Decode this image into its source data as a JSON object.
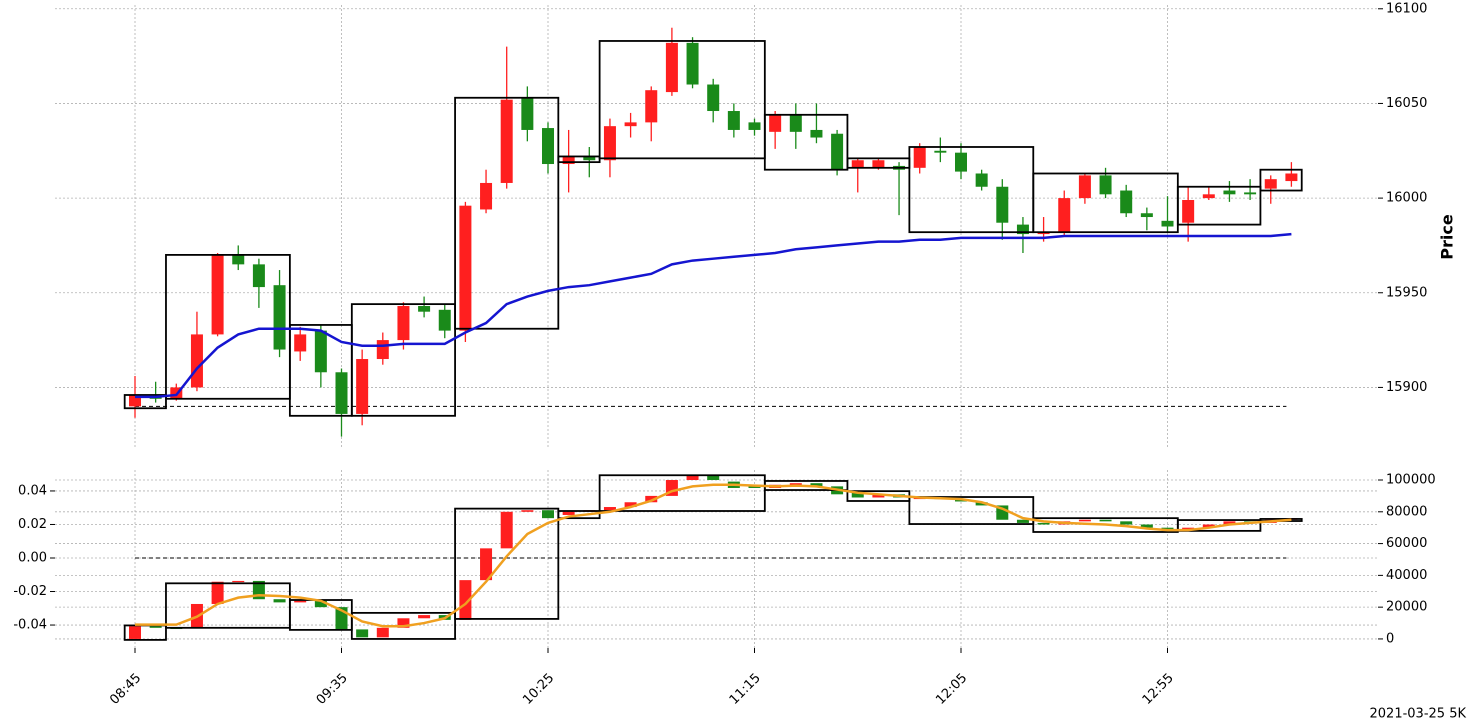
{
  "footer": "2021-03-25 5K",
  "chart_data": [
    {
      "type": "candlestick",
      "ylabel": "Price",
      "ylim": [
        15868,
        16102
      ],
      "yticks": [
        15900,
        15950,
        16000,
        16050,
        16100
      ],
      "grid": true,
      "up_color": "#ff1f1f",
      "down_color": "#1a8a1a",
      "box_color": "#000000",
      "hline": 15890,
      "open": [
        15890,
        15895,
        15894,
        15900,
        15928,
        15970,
        15965,
        15954,
        15919,
        15930,
        15908,
        15886,
        15915,
        15925,
        15943,
        15941,
        15930,
        15994,
        16008,
        16053,
        16037,
        16018,
        16022,
        16020,
        16038,
        16040,
        16056,
        16082,
        16060,
        16046,
        16040,
        16035,
        16044,
        16036,
        16034,
        16016,
        16016,
        16017,
        16016,
        16025,
        16024,
        16013,
        16006,
        15986,
        15981,
        15982,
        16000,
        16012,
        16004,
        15992,
        15988,
        15987,
        16000,
        16004,
        16003,
        16005,
        16009
      ],
      "high": [
        15906,
        15903,
        15902,
        15940,
        15971,
        15975,
        15968,
        15962,
        15932,
        15933,
        15910,
        15920,
        15929,
        15945,
        15948,
        15944,
        15998,
        16015,
        16080,
        16059,
        16040,
        16036,
        16027,
        16042,
        16045,
        16059,
        16090,
        16085,
        16063,
        16050,
        16042,
        16046,
        16050,
        16050,
        16036,
        16021,
        16021,
        16019,
        16029,
        16032,
        16029,
        16015,
        16010,
        15990,
        15990,
        16004,
        16013,
        16016,
        16007,
        15995,
        16001,
        16006,
        16006,
        16009,
        16010,
        16012,
        16019
      ],
      "low": [
        15884,
        15892,
        15893,
        15898,
        15927,
        15962,
        15942,
        15916,
        15914,
        15900,
        15874,
        15880,
        15912,
        15920,
        15937,
        15926,
        15924,
        15992,
        16005,
        16030,
        16013,
        16003,
        16011,
        16011,
        16032,
        16030,
        16054,
        16058,
        16040,
        16032,
        16033,
        16026,
        16026,
        16029,
        16012,
        16003,
        16015,
        15991,
        16013,
        16019,
        16010,
        16004,
        15978,
        15971,
        15977,
        15980,
        15997,
        16000,
        15990,
        15983,
        15982,
        15977,
        15999,
        15998,
        15999,
        15997,
        16006
      ],
      "close": [
        15896,
        15894,
        15900,
        15928,
        15970,
        15965,
        15953,
        15920,
        15928,
        15908,
        15886,
        15915,
        15925,
        15943,
        15940,
        15930,
        15996,
        16008,
        16052,
        16036,
        16018,
        16022,
        16020,
        16038,
        16040,
        16057,
        16082,
        16060,
        16046,
        16036,
        16036,
        16044,
        16035,
        16032,
        16015,
        16020,
        16020,
        16015,
        16027,
        16024,
        16014,
        16006,
        15987,
        15981,
        15982,
        16000,
        16012,
        16002,
        15992,
        15990,
        15985,
        15999,
        16002,
        16002,
        16002,
        16010,
        16013
      ],
      "boxes": [
        {
          "high": 15896,
          "low": 15889,
          "bars": 2
        },
        {
          "high": 15970,
          "low": 15894,
          "bars": 6
        },
        {
          "high": 15933,
          "low": 15885,
          "bars": 3
        },
        {
          "high": 15944,
          "low": 15885,
          "bars": 5
        },
        {
          "high": 16053,
          "low": 15931,
          "bars": 5
        },
        {
          "high": 16022,
          "low": 16019,
          "bars": 2
        },
        {
          "high": 16083,
          "low": 16021,
          "bars": 8
        },
        {
          "high": 16044,
          "low": 16015,
          "bars": 4
        },
        {
          "high": 16021,
          "low": 16016,
          "bars": 3
        },
        {
          "high": 16027,
          "low": 15982,
          "bars": 6
        },
        {
          "high": 16013,
          "low": 15982,
          "bars": 7
        },
        {
          "high": 16006,
          "low": 15986,
          "bars": 4
        },
        {
          "high": 16015,
          "low": 16004,
          "bars": 2
        }
      ],
      "lines": [
        {
          "color": "#1515d0",
          "values": [
            15895,
            15895,
            15896,
            15910,
            15921,
            15928,
            15931,
            15931,
            15931,
            15930,
            15924,
            15922,
            15922,
            15923,
            15923,
            15923,
            15929,
            15934,
            15944,
            15948,
            15951,
            15953,
            15954,
            15956,
            15958,
            15960,
            15965,
            15967,
            15968,
            15969,
            15970,
            15971,
            15973,
            15974,
            15975,
            15976,
            15977,
            15977,
            15978,
            15978,
            15979,
            15979,
            15979,
            15979,
            15979,
            15980,
            15980,
            15980,
            15980,
            15980,
            15980,
            15980,
            15980,
            15980,
            15980,
            15980,
            15981
          ]
        }
      ]
    },
    {
      "type": "candlestick",
      "ylim": [
        -0.0537,
        0.0525
      ],
      "yticks": [
        -0.04,
        -0.02,
        {
          "value": 0,
          "label": "0.00"
        },
        0.02,
        0.04
      ],
      "y2lim": [
        -5700,
        106300
      ],
      "y2ticks": [
        0,
        20000,
        40000,
        60000,
        80000,
        100000
      ],
      "grid": true,
      "candle_axis": "y2",
      "up_color": "#ff1f1f",
      "down_color": "#1a8a1a",
      "box_color": "#000000",
      "hline": 0,
      "categories": [
        "08:45",
        null,
        null,
        null,
        null,
        null,
        null,
        null,
        null,
        null,
        "09:35",
        null,
        null,
        null,
        null,
        null,
        null,
        null,
        null,
        null,
        "10:25",
        null,
        null,
        null,
        null,
        null,
        null,
        null,
        null,
        null,
        "11:15",
        null,
        null,
        null,
        null,
        null,
        null,
        null,
        null,
        null,
        "12:05",
        null,
        null,
        null,
        null,
        null,
        null,
        null,
        null,
        null,
        "12:55",
        null,
        null,
        null,
        null,
        null,
        null
      ],
      "open": [
        0,
        8000,
        7000,
        7000,
        22000,
        36000,
        36500,
        25000,
        23000,
        24000,
        20000,
        6000,
        1000,
        7000,
        13000,
        15000,
        12000,
        37000,
        57000,
        80000,
        81000,
        78000,
        80000,
        81000,
        83000,
        86000,
        90000,
        100000,
        103000,
        99000,
        96000,
        95000,
        96000,
        98000,
        96000,
        92000,
        89000,
        91000,
        88000,
        89000,
        88000,
        86000,
        84000,
        75000,
        73000,
        72000,
        74000,
        75000,
        74000,
        72000,
        70000,
        69000,
        70000,
        72000,
        74000,
        73000,
        75000
      ],
      "close": [
        8000,
        7000,
        6500,
        22000,
        36000,
        36500,
        25000,
        23000,
        24000,
        20000,
        6000,
        1000,
        7000,
        13000,
        15000,
        12000,
        37000,
        57000,
        80000,
        81000,
        76000,
        80000,
        81000,
        83000,
        86000,
        90000,
        100000,
        103000,
        100000,
        95000,
        95000,
        97000,
        98000,
        96000,
        91000,
        89000,
        91000,
        89000,
        89000,
        88000,
        86500,
        84000,
        75000,
        73000,
        72000,
        74000,
        75000,
        74000,
        72000,
        70000,
        69000,
        70000,
        72000,
        74000,
        73000,
        75000,
        76000
      ],
      "boxes": [
        {
          "high": 8500,
          "low": -600,
          "bars": 2
        },
        {
          "high": 35000,
          "low": 7000,
          "bars": 6
        },
        {
          "high": 24500,
          "low": 5700,
          "bars": 3
        },
        {
          "high": 16400,
          "low": 0,
          "bars": 5
        },
        {
          "high": 82000,
          "low": 12600,
          "bars": 5
        },
        {
          "high": 80500,
          "low": 76000,
          "bars": 2
        },
        {
          "high": 103000,
          "low": 80500,
          "bars": 8
        },
        {
          "high": 99400,
          "low": 93700,
          "bars": 4
        },
        {
          "high": 93000,
          "low": 86800,
          "bars": 3
        },
        {
          "high": 89300,
          "low": 72300,
          "bars": 6
        },
        {
          "high": 76000,
          "low": 67300,
          "bars": 7
        },
        {
          "high": 74800,
          "low": 68000,
          "bars": 4
        },
        {
          "high": 75500,
          "low": 74200,
          "bars": 2
        }
      ],
      "lines": [
        {
          "color": "#f0a020",
          "axis": "y2",
          "values": [
            9000,
            9000,
            9000,
            14000,
            22000,
            26000,
            27500,
            27000,
            26000,
            24000,
            18000,
            11000,
            8000,
            8000,
            10000,
            13000,
            22000,
            36000,
            52000,
            66000,
            73000,
            77000,
            78500,
            80000,
            83000,
            87000,
            93000,
            96000,
            97000,
            97000,
            96500,
            96000,
            96500,
            96000,
            94000,
            92000,
            91000,
            90000,
            89000,
            88500,
            88000,
            86000,
            82000,
            76000,
            74000,
            73000,
            72500,
            72000,
            71000,
            69500,
            68500,
            68500,
            70000,
            72000,
            73000,
            74000,
            75000
          ]
        }
      ]
    }
  ]
}
